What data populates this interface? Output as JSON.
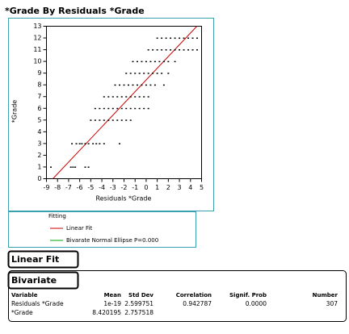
{
  "header": {
    "title": "*Grade By Residuals  *Grade"
  },
  "chart_data": {
    "type": "scatter",
    "xlabel": "Residuals  *Grade",
    "ylabel": "*Grade",
    "xlim": [
      -9,
      5
    ],
    "ylim": [
      0,
      13
    ],
    "xticks": [
      -9,
      -8,
      -7,
      -6,
      -5,
      -4,
      -3,
      -2,
      -1,
      0,
      1,
      2,
      3,
      4,
      5
    ],
    "yticks": [
      0,
      1,
      2,
      3,
      4,
      5,
      6,
      7,
      8,
      9,
      10,
      11,
      12,
      13
    ],
    "color": "#000000",
    "x": [
      -8.6,
      -6.8,
      -6.6,
      -6.4,
      -5.5,
      -5.2,
      -6.7,
      -6.3,
      -6.0,
      -5.8,
      -5.5,
      -5.2,
      -4.8,
      -4.5,
      -4.2,
      -3.8,
      -2.4,
      -5.0,
      -4.6,
      -4.2,
      -3.8,
      -3.4,
      -3.0,
      -2.6,
      -2.2,
      -1.8,
      -1.4,
      -4.6,
      -4.2,
      -3.8,
      -3.4,
      -3.0,
      -2.6,
      -2.2,
      -1.8,
      -1.4,
      -1.0,
      -0.6,
      -0.2,
      0.2,
      -3.8,
      -3.4,
      -3.0,
      -2.6,
      -2.2,
      -1.8,
      -1.4,
      -1.0,
      -0.6,
      -0.2,
      0.2,
      -2.8,
      -2.4,
      -2.0,
      -1.6,
      -1.2,
      -0.8,
      -0.4,
      0,
      0.4,
      0.8,
      1.6,
      -1.8,
      -1.4,
      -1.0,
      -0.6,
      -0.2,
      0.2,
      0.6,
      1.0,
      1.4,
      2.0,
      -1.2,
      -0.8,
      -0.4,
      0,
      0.4,
      0.8,
      1.2,
      1.6,
      2.0,
      2.6,
      0.2,
      0.6,
      1.0,
      1.4,
      1.8,
      2.2,
      2.6,
      3.0,
      3.4,
      3.8,
      4.2,
      4.6,
      1.0,
      1.4,
      1.8,
      2.2,
      2.6,
      3.0,
      3.4,
      3.8,
      4.2,
      4.6
    ],
    "y": [
      1,
      1,
      1,
      1,
      1,
      1,
      3,
      3,
      3,
      3,
      3,
      3,
      3,
      3,
      3,
      3,
      3,
      5,
      5,
      5,
      5,
      5,
      5,
      5,
      5,
      5,
      5,
      6,
      6,
      6,
      6,
      6,
      6,
      6,
      6,
      6,
      6,
      6,
      6,
      6,
      7,
      7,
      7,
      7,
      7,
      7,
      7,
      7,
      7,
      7,
      7,
      8,
      8,
      8,
      8,
      8,
      8,
      8,
      8,
      8,
      8,
      8,
      9,
      9,
      9,
      9,
      9,
      9,
      9,
      9,
      9,
      9,
      10,
      10,
      10,
      10,
      10,
      10,
      10,
      10,
      10,
      10,
      11,
      11,
      11,
      11,
      11,
      11,
      11,
      11,
      11,
      11,
      11,
      11,
      12,
      12,
      12,
      12,
      12,
      12,
      12,
      12,
      12,
      12
    ],
    "fit_line": {
      "name": "Linear Fit",
      "color": "#cc0000",
      "x": [
        -8.42,
        4.58
      ],
      "y": [
        0,
        13
      ]
    },
    "legend": {
      "title": "Fitting",
      "entries": [
        {
          "name": "Linear Fit",
          "color": "#cc0000"
        },
        {
          "name": "Bivarate Normal Ellipse P=0.000",
          "color": "#00aa00"
        }
      ]
    }
  },
  "buttons": [
    "Linear Fit",
    "Bivariate"
  ],
  "table": {
    "columns": [
      "Variable",
      "Mean",
      "Std Dev",
      "Correlation",
      "Signif. Prob",
      "Number"
    ],
    "rows": [
      [
        "Residuals  *Grade",
        "1e-19",
        "2.599751",
        "0.942787",
        "0.0000",
        "307"
      ],
      [
        "*Grade",
        "8.420195",
        "2.757518"
      ]
    ]
  }
}
